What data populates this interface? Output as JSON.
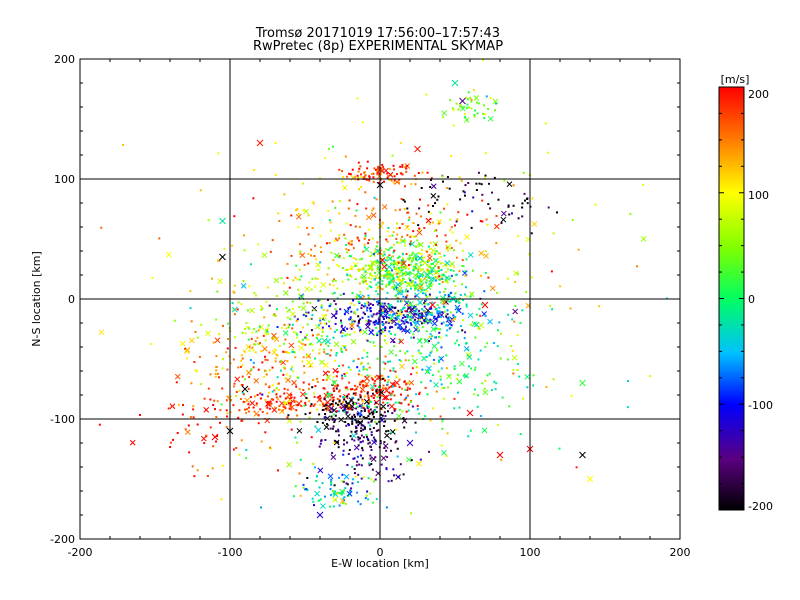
{
  "chart_data": {
    "type": "scatter",
    "title": "Tromsø 20171019 17:56:00–17:57:43",
    "subtitle": "RwPretec (8p) EXPERIMENTAL SKYMAP",
    "xlabel": "E-W location [km]",
    "ylabel": "N-S location [km]",
    "xlim": [
      -200,
      200
    ],
    "ylim": [
      -200,
      200
    ],
    "xticks": [
      "-200",
      "-100",
      "0",
      "100",
      "200"
    ],
    "yticks": [
      "-200",
      "-100",
      "0",
      "100",
      "200"
    ],
    "grid": true,
    "colorbar": {
      "label": "[m/s]",
      "min": -200,
      "max": 200,
      "ticks": [
        "200",
        "100",
        "0",
        "-100",
        "-200"
      ],
      "colormap": "black-purple-blue-cyan-green-yellow-red"
    },
    "clusters": [
      {
        "cx": 0,
        "cy": 105,
        "sx": 12,
        "sy": 4,
        "n": 90,
        "v": 180
      },
      {
        "cx": 10,
        "cy": 25,
        "sx": 25,
        "sy": 10,
        "n": 260,
        "v": 60
      },
      {
        "cx": 20,
        "cy": 20,
        "sx": 18,
        "sy": 12,
        "n": 180,
        "v": 10
      },
      {
        "cx": 5,
        "cy": -15,
        "sx": 25,
        "sy": 8,
        "n": 280,
        "v": -120
      },
      {
        "cx": 30,
        "cy": -10,
        "sx": 20,
        "sy": 15,
        "n": 120,
        "v": -40
      },
      {
        "cx": -5,
        "cy": -75,
        "sx": 20,
        "sy": 10,
        "n": 180,
        "v": 190
      },
      {
        "cx": -60,
        "cy": -88,
        "sx": 20,
        "sy": 5,
        "n": 120,
        "v": 190
      },
      {
        "cx": -80,
        "cy": -55,
        "sx": 25,
        "sy": 20,
        "n": 160,
        "v": 150
      },
      {
        "cx": -15,
        "cy": -100,
        "sx": 15,
        "sy": 12,
        "n": 200,
        "v": -190
      },
      {
        "cx": -10,
        "cy": -130,
        "sx": 15,
        "sy": 15,
        "n": 90,
        "v": -150
      },
      {
        "cx": -25,
        "cy": -160,
        "sx": 15,
        "sy": 6,
        "n": 70,
        "v": -30
      },
      {
        "cx": 60,
        "cy": 160,
        "sx": 10,
        "sy": 6,
        "n": 45,
        "v": 40
      },
      {
        "cx": 90,
        "cy": 75,
        "sx": 12,
        "sy": 8,
        "n": 25,
        "v": -200
      },
      {
        "cx": 50,
        "cy": 85,
        "sx": 20,
        "sy": 10,
        "n": 40,
        "v": -200
      },
      {
        "cx": 0,
        "cy": 50,
        "sx": 40,
        "sy": 25,
        "n": 200,
        "v": 150
      },
      {
        "cx": -50,
        "cy": -20,
        "sx": 30,
        "sy": 20,
        "n": 160,
        "v": 70
      },
      {
        "cx": 30,
        "cy": -60,
        "sx": 30,
        "sy": 25,
        "n": 140,
        "v": 0
      },
      {
        "cx": 0,
        "cy": 0,
        "sx": 70,
        "sy": 70,
        "n": 300,
        "v": 100
      },
      {
        "cx": 0,
        "cy": -40,
        "sx": 50,
        "sy": 50,
        "n": 200,
        "v": -20
      },
      {
        "cx": -110,
        "cy": -110,
        "sx": 25,
        "sy": 20,
        "n": 50,
        "v": 200
      }
    ],
    "crosses": [
      {
        "x": -80,
        "y": 130,
        "v": 190
      },
      {
        "x": 25,
        "y": 125,
        "v": 190
      },
      {
        "x": 55,
        "y": 165,
        "v": -150
      },
      {
        "x": 50,
        "y": 180,
        "v": -20
      },
      {
        "x": -105,
        "y": 35,
        "v": -200
      },
      {
        "x": -105,
        "y": 65,
        "v": -20
      },
      {
        "x": 0,
        "y": 95,
        "v": -190
      },
      {
        "x": 35,
        "y": -5,
        "v": 200
      },
      {
        "x": 70,
        "y": -5,
        "v": 200
      },
      {
        "x": 135,
        "y": -70,
        "v": 20
      },
      {
        "x": 135,
        "y": -130,
        "v": -200
      },
      {
        "x": 140,
        "y": -150,
        "v": 100
      },
      {
        "x": 100,
        "y": -125,
        "v": 200
      },
      {
        "x": 80,
        "y": -130,
        "v": 200
      },
      {
        "x": 60,
        "y": -95,
        "v": 200
      },
      {
        "x": -100,
        "y": -110,
        "v": -200
      },
      {
        "x": -110,
        "y": -115,
        "v": 200
      },
      {
        "x": -40,
        "y": -180,
        "v": -120
      },
      {
        "x": 20,
        "y": -120,
        "v": -130
      },
      {
        "x": -90,
        "y": -75,
        "v": -200
      }
    ]
  }
}
